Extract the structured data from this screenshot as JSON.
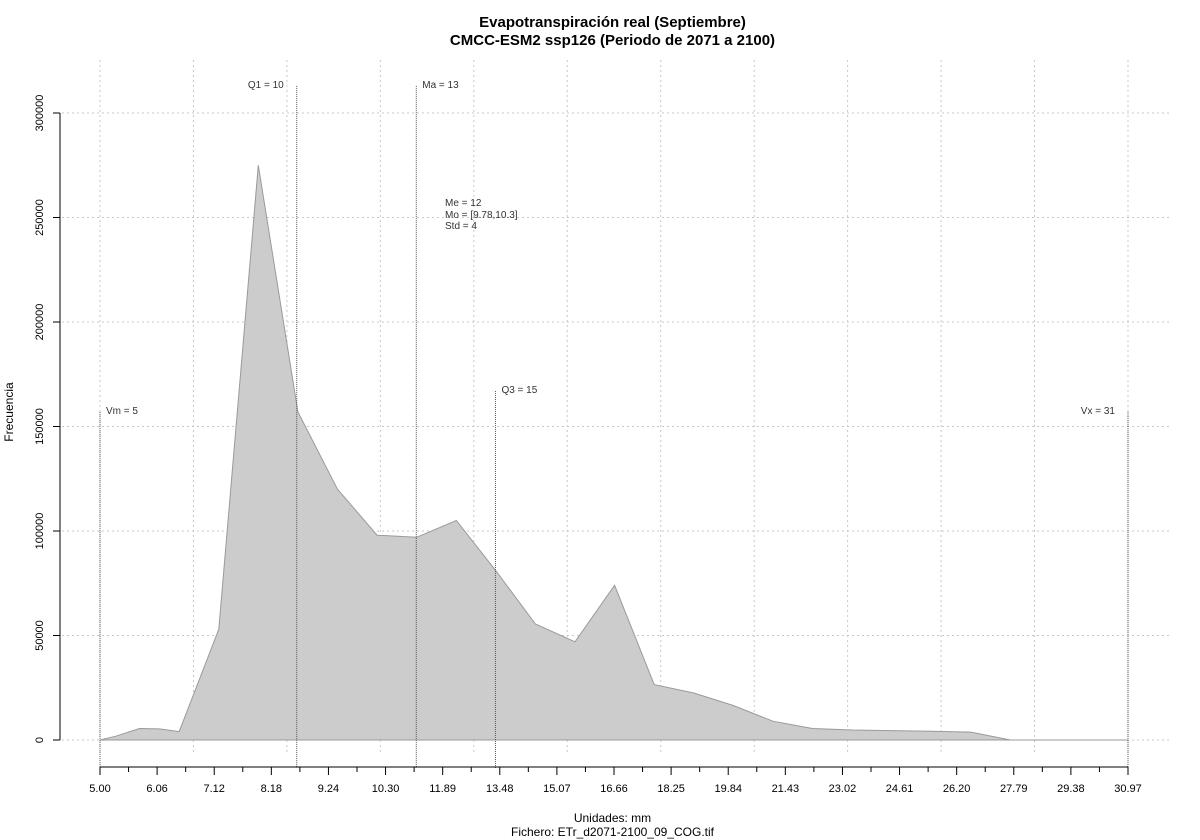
{
  "chart_data": {
    "type": "area",
    "title": "Evapotranspiración real (Septiembre)",
    "subtitle": "CMCC-ESM2 ssp126 (Periodo de 2071 a 2100)",
    "xlabel": "Unidades: mm",
    "ylabel": "Frecuencia",
    "file_label": "Fichero: ETr_d2071-2100_09_COG.tif",
    "xlim": [
      5.0,
      30.97
    ],
    "ylim": [
      0,
      300000
    ],
    "x_ticks": [
      "5.00",
      "6.06",
      "7.12",
      "8.18",
      "9.24",
      "10.30",
      "11.89",
      "13.48",
      "15.07",
      "16.66",
      "18.25",
      "19.84",
      "21.43",
      "23.02",
      "24.61",
      "26.20",
      "27.79",
      "29.38",
      "30.97"
    ],
    "y_ticks": [
      0,
      50000,
      100000,
      150000,
      200000,
      250000,
      300000
    ],
    "grid": true,
    "x": [
      5.0,
      5.4,
      6.0,
      6.5,
      7.0,
      8.0,
      9.0,
      10.0,
      11.0,
      12.0,
      13.0,
      14.0,
      15.0,
      16.0,
      17.0,
      18.0,
      19.0,
      20.0,
      21.0,
      22.0,
      23.0,
      24.0,
      25.0,
      26.0,
      27.0,
      28.0,
      29.0,
      30.0,
      30.97
    ],
    "series": [
      {
        "values": [
          0,
          1800,
          5500,
          5300,
          4000,
          53000,
          275000,
          157000,
          120000,
          98000,
          97000,
          105000,
          81000,
          55500,
          47000,
          74000,
          26500,
          22500,
          16500,
          9000,
          5500,
          4800,
          4500,
          4200,
          3800,
          0,
          0,
          0,
          0
        ]
      }
    ],
    "markers": [
      {
        "label": "Vm = 5",
        "value": 5.0,
        "top": 157000,
        "label_side": "right"
      },
      {
        "label": "Q1 = 10",
        "value": 9.97,
        "top": 313000,
        "label_side": "left"
      },
      {
        "label": "Ma = 13",
        "value": 12.99,
        "top": 313000,
        "label_side": "right"
      },
      {
        "label": "Q3 = 15",
        "value": 14.99,
        "top": 167000,
        "label_side": "right"
      },
      {
        "label": "Vx = 31",
        "value": 30.97,
        "top": 157000,
        "label_side": "left"
      }
    ],
    "stats": [
      "Me = 12",
      "Mo = [9.78,10.3]",
      "Std = 4"
    ],
    "colors": {
      "fill": "#cccccc",
      "stroke": "#9a9a9a",
      "grid": "#c8c8c8",
      "marker": "#555555"
    }
  }
}
